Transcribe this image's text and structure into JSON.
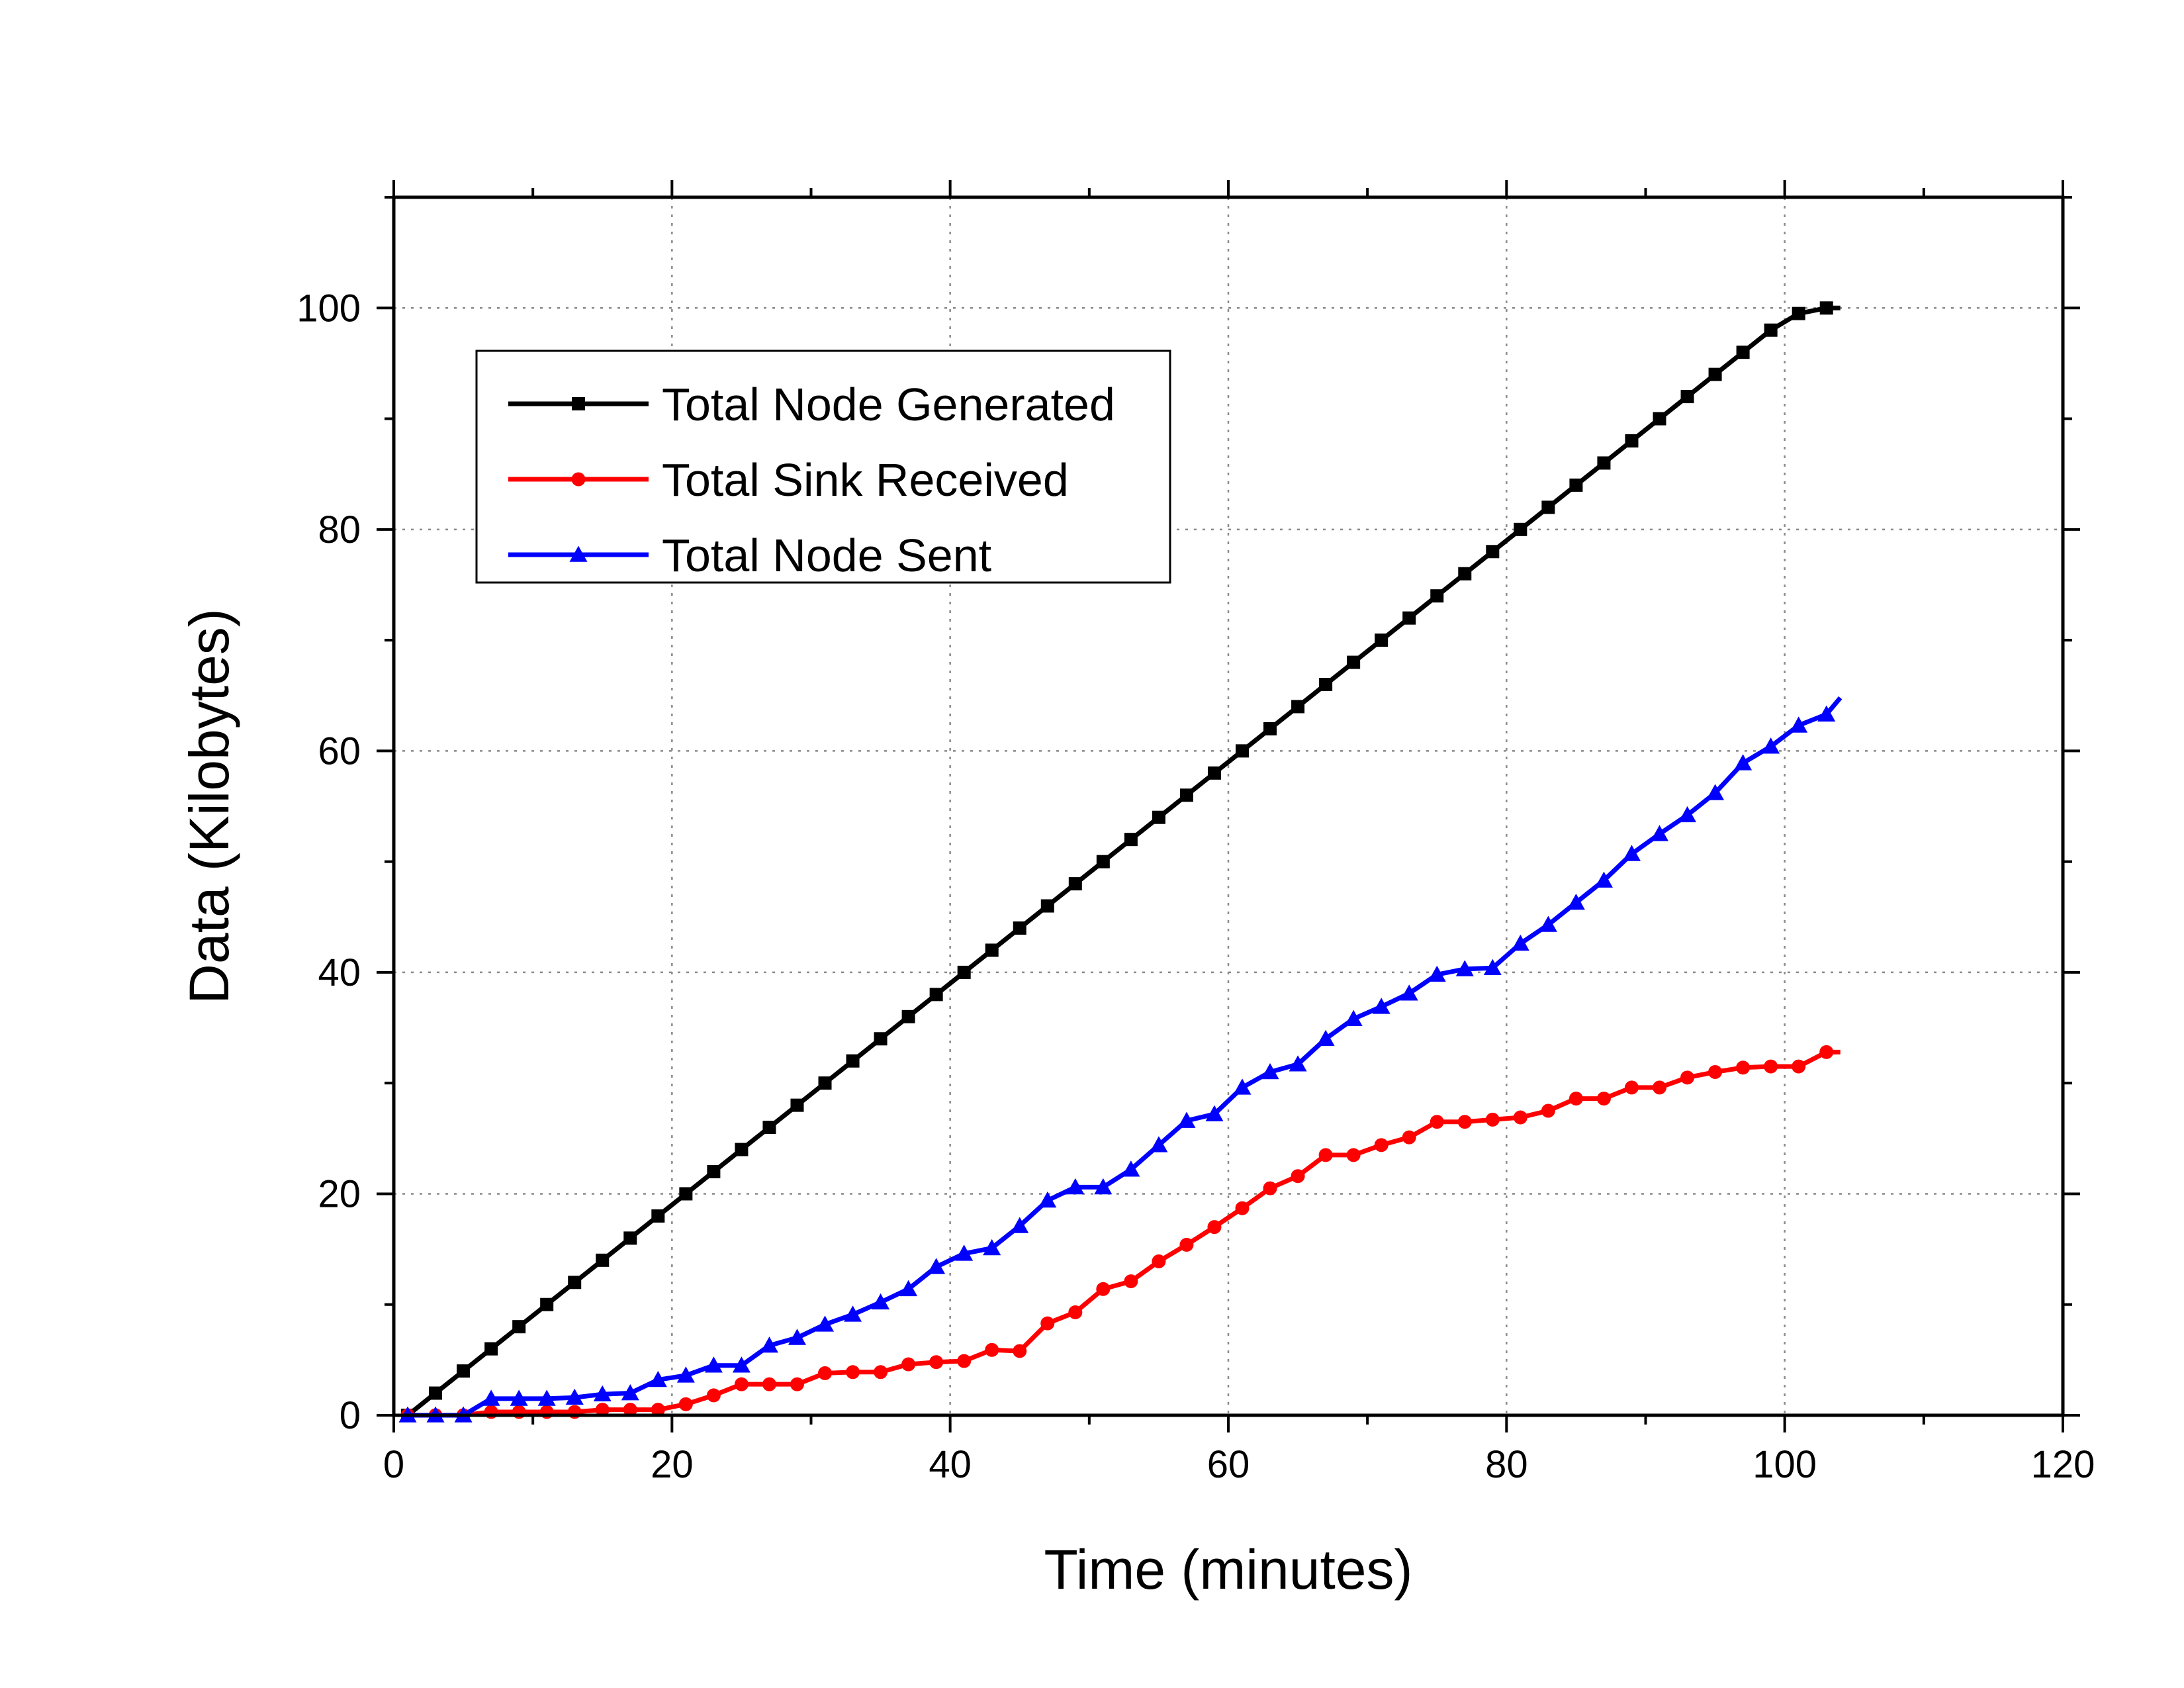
{
  "chart_data": {
    "type": "line",
    "title": "",
    "xlabel": "Time (minutes)",
    "ylabel": "Data (Kilobytes)",
    "xlim": [
      0,
      120
    ],
    "ylim": [
      0,
      110
    ],
    "xticks": [
      0,
      20,
      40,
      60,
      80,
      100,
      120
    ],
    "yticks": [
      0,
      20,
      40,
      60,
      80,
      100
    ],
    "xtick_labels": [
      "0",
      "20",
      "40",
      "60",
      "80",
      "100",
      "120"
    ],
    "ytick_labels": [
      "0",
      "20",
      "40",
      "60",
      "80",
      "100"
    ],
    "grid": true,
    "legend_position": "top-left",
    "series": [
      {
        "name": "Total Node Generated",
        "color": "#000000",
        "marker": "square",
        "x": [
          1,
          3,
          5,
          7,
          9,
          11,
          13,
          15,
          17,
          19,
          21,
          23,
          25,
          27,
          29,
          31,
          33,
          35,
          37,
          39,
          41,
          43,
          45,
          47,
          49,
          51,
          53,
          55,
          57,
          59,
          61,
          63,
          65,
          67,
          69,
          71,
          73,
          75,
          77,
          79,
          81,
          83,
          85,
          87,
          89,
          91,
          93,
          95,
          97,
          99,
          101,
          103,
          104
        ],
        "y": [
          0,
          2,
          4,
          6,
          8,
          10,
          12,
          14,
          16,
          18,
          20,
          22,
          24,
          26,
          28,
          30,
          32,
          34,
          36,
          38,
          40,
          42,
          44,
          46,
          48,
          50,
          52,
          54,
          56,
          58,
          60,
          62,
          64,
          66,
          68,
          70,
          72,
          74,
          76,
          78,
          80,
          82,
          84,
          86,
          88,
          90,
          92,
          94,
          96,
          98,
          99.5,
          100,
          100
        ]
      },
      {
        "name": "Total Sink Received",
        "color": "#ff0000",
        "marker": "circle",
        "x": [
          1,
          3,
          5,
          7,
          9,
          11,
          13,
          15,
          17,
          19,
          21,
          23,
          25,
          27,
          29,
          31,
          33,
          35,
          37,
          39,
          41,
          43,
          45,
          47,
          49,
          51,
          53,
          55,
          57,
          59,
          61,
          63,
          65,
          67,
          69,
          71,
          73,
          75,
          77,
          79,
          81,
          83,
          85,
          87,
          89,
          91,
          93,
          95,
          97,
          99,
          101,
          103,
          104
        ],
        "y": [
          0,
          0,
          0,
          0.3,
          0.3,
          0.3,
          0.3,
          0.5,
          0.5,
          0.5,
          1,
          1.8,
          2.8,
          2.8,
          2.8,
          3.8,
          3.9,
          3.9,
          4.6,
          4.8,
          4.9,
          5.9,
          5.8,
          8.3,
          9.3,
          11.4,
          12.1,
          13.9,
          15.4,
          17,
          18.7,
          20.5,
          21.6,
          23.5,
          23.5,
          24.4,
          25.1,
          26.5,
          26.5,
          26.7,
          26.9,
          27.5,
          28.6,
          28.6,
          29.6,
          29.6,
          30.5,
          31,
          31.4,
          31.5,
          31.5,
          32.8,
          32.8
        ]
      },
      {
        "name": "Total Node Sent",
        "color": "#0000ff",
        "marker": "triangle",
        "x": [
          1,
          3,
          5,
          7,
          9,
          11,
          13,
          15,
          17,
          19,
          21,
          23,
          25,
          27,
          29,
          31,
          33,
          35,
          37,
          39,
          41,
          43,
          45,
          47,
          49,
          51,
          53,
          55,
          57,
          59,
          61,
          63,
          65,
          67,
          69,
          71,
          73,
          75,
          77,
          79,
          81,
          83,
          85,
          87,
          89,
          91,
          93,
          95,
          97,
          99,
          101,
          103,
          104
        ],
        "y": [
          0,
          0,
          0,
          1.5,
          1.5,
          1.5,
          1.6,
          1.9,
          2,
          3.2,
          3.6,
          4.5,
          4.5,
          6.3,
          7,
          8.2,
          9.1,
          10.2,
          11.4,
          13.4,
          14.6,
          15.1,
          17.1,
          19.4,
          20.6,
          20.6,
          22.2,
          24.4,
          26.6,
          27.2,
          29.6,
          31,
          31.7,
          34,
          35.8,
          36.9,
          38.1,
          39.8,
          40.3,
          40.4,
          42.6,
          44.3,
          46.3,
          48.3,
          50.7,
          52.5,
          54.2,
          56.2,
          58.9,
          60.4,
          62.3,
          63.3,
          64.8
        ]
      }
    ]
  }
}
